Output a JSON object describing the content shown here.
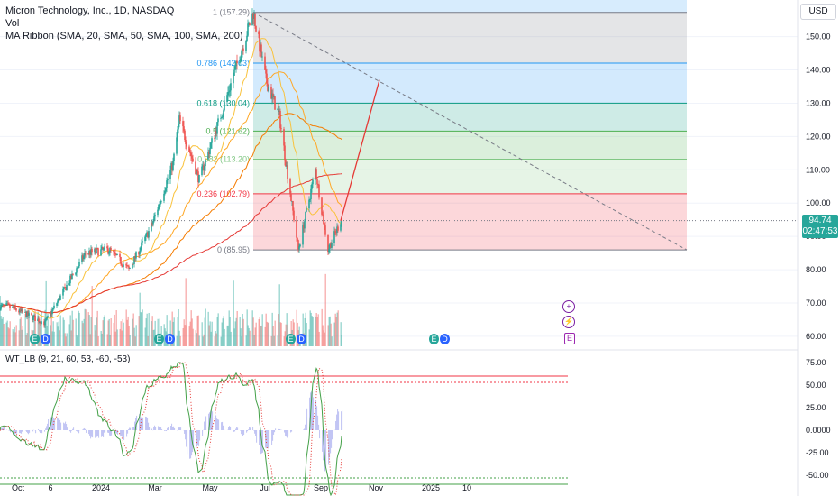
{
  "header": {
    "title": "Micron Technology, Inc., 1D, NASDAQ",
    "vol_label": "Vol",
    "ma_label": "MA Ribbon (SMA, 20, SMA, 50, SMA, 100, SMA, 200)",
    "osc_label": "WT_LB (9, 21, 60, 53, -60, -53)",
    "currency": "USD"
  },
  "price_badge": {
    "price": "94.74",
    "countdown": "02:47:53"
  },
  "events": {
    "plus": "+",
    "lightning": "⚡",
    "earnings": "E",
    "dividend": "D"
  },
  "colors": {
    "up": "#26a69a",
    "down": "#ef5350",
    "ma20": "#f9c23c",
    "ma50": "#ffa726",
    "ma100": "#f57c00",
    "ma200": "#e53935",
    "wave1": "#43a047",
    "wave2": "#e53935",
    "diff": "#7e86e6",
    "projection": "#e53935"
  },
  "chart_data": {
    "type": "candlestick",
    "title": "Micron Technology, Inc., 1D, NASDAQ",
    "y_axis_ticks": [
      "150.00",
      "140.00",
      "130.00",
      "120.00",
      "110.00",
      "100.00",
      "90.00",
      "80.00",
      "70.00",
      "60.00"
    ],
    "y_range": [
      57,
      161
    ],
    "x_axis_ticks": [
      "Oct",
      "6",
      "2024",
      "Mar",
      "May",
      "Jul",
      "Sep",
      "Nov",
      "2025",
      "10"
    ],
    "last_price": 94.74,
    "key_prices": [
      {
        "date": "2023-09-20",
        "price": 69
      },
      {
        "date": "2023-10-31",
        "price": 64
      },
      {
        "date": "2023-12-15",
        "price": 85
      },
      {
        "date": "2024-01-10",
        "price": 86
      },
      {
        "date": "2024-02-01",
        "price": 80
      },
      {
        "date": "2024-02-26",
        "price": 93
      },
      {
        "date": "2024-03-21",
        "price": 112
      },
      {
        "date": "2024-03-28",
        "price": 125
      },
      {
        "date": "2024-04-19",
        "price": 107
      },
      {
        "date": "2024-05-15",
        "price": 128
      },
      {
        "date": "2024-06-18",
        "price": 157.29
      },
      {
        "date": "2024-07-02",
        "price": 137
      },
      {
        "date": "2024-07-17",
        "price": 126
      },
      {
        "date": "2024-08-07",
        "price": 86
      },
      {
        "date": "2024-08-26",
        "price": 110
      },
      {
        "date": "2024-09-09",
        "price": 86
      },
      {
        "date": "2024-09-23",
        "price": 94.74
      }
    ],
    "fibonacci": [
      {
        "level": "1",
        "price": 157.29,
        "label": "1 (157.29)",
        "color": "#787b86"
      },
      {
        "level": "0.786",
        "price": 142.03,
        "label": "0.786 (142.03)",
        "color": "#2196f3"
      },
      {
        "level": "0.618",
        "price": 130.04,
        "label": "0.618 (130.04)",
        "color": "#089981"
      },
      {
        "level": "0.5",
        "price": 121.62,
        "label": "0.5 (121.62)",
        "color": "#4caf50"
      },
      {
        "level": "0.382",
        "price": 113.2,
        "label": "0.382 (113.20)",
        "color": "#81c784"
      },
      {
        "level": "0.236",
        "price": 102.79,
        "label": "0.236 (102.79)",
        "color": "#f23645"
      },
      {
        "level": "0",
        "price": 85.95,
        "label": "0 (85.95)",
        "color": "#787b86"
      }
    ],
    "projection": {
      "from": {
        "date": "2024-09-23",
        "price": 94.74
      },
      "to": {
        "date": "2024-11-05",
        "price": 137
      }
    },
    "oscillator": {
      "name": "WT_LB",
      "params": [
        9,
        21,
        60,
        53,
        -60,
        -53
      ],
      "y_axis_ticks": [
        "75.00",
        "50.00",
        "25.00",
        "0.0000",
        "-25.00",
        "-50.00"
      ],
      "y_range": [
        -73,
        87
      ],
      "levels": {
        "ob1": 60,
        "ob2": 53,
        "os1": -60,
        "os2": -53
      }
    }
  }
}
